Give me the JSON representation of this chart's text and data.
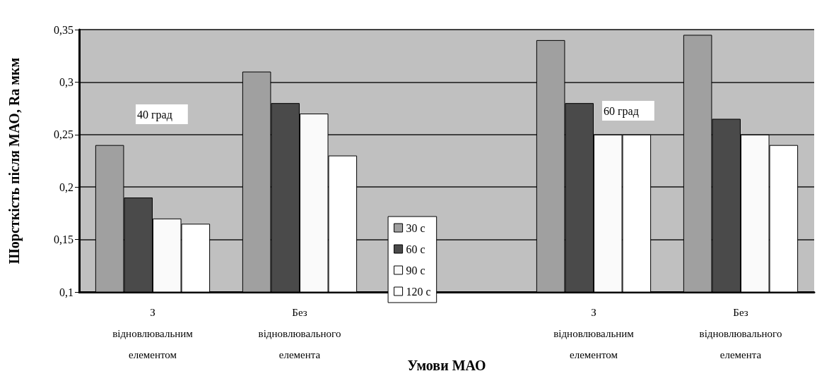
{
  "chart_data": {
    "type": "bar",
    "xlabel": "Умови МАО",
    "ylabel": "Шорсткість після МАО, Ra мкм",
    "categories": [
      "З відновлювальним елементом",
      "Без відновлювального елемента",
      null,
      "З відновлювальним елементом",
      "Без відновлювального елемента"
    ],
    "series": [
      {
        "name": "30 с",
        "color": "#a0a0a0",
        "values": [
          0.24,
          0.31,
          null,
          0.34,
          0.345
        ]
      },
      {
        "name": "60 с",
        "color": "#4a4a4a",
        "values": [
          0.19,
          0.28,
          null,
          0.28,
          0.265
        ]
      },
      {
        "name": "90 с",
        "color": "#fafafa",
        "values": [
          0.17,
          0.27,
          null,
          0.25,
          0.25
        ]
      },
      {
        "name": "120 с",
        "color": "#ffffff",
        "values": [
          0.165,
          0.23,
          null,
          0.25,
          0.24
        ]
      }
    ],
    "ylim": [
      0.1,
      0.35
    ],
    "yticks": [
      {
        "value": 0.1,
        "label": "0,1"
      },
      {
        "value": 0.15,
        "label": "0,15"
      },
      {
        "value": 0.2,
        "label": "0,2"
      },
      {
        "value": 0.25,
        "label": "0,25"
      },
      {
        "value": 0.3,
        "label": "0,3"
      },
      {
        "value": 0.35,
        "label": "0,35"
      }
    ],
    "annotations": [
      "40 град",
      "60 град"
    ],
    "grid": "y",
    "legend": "bottom"
  }
}
